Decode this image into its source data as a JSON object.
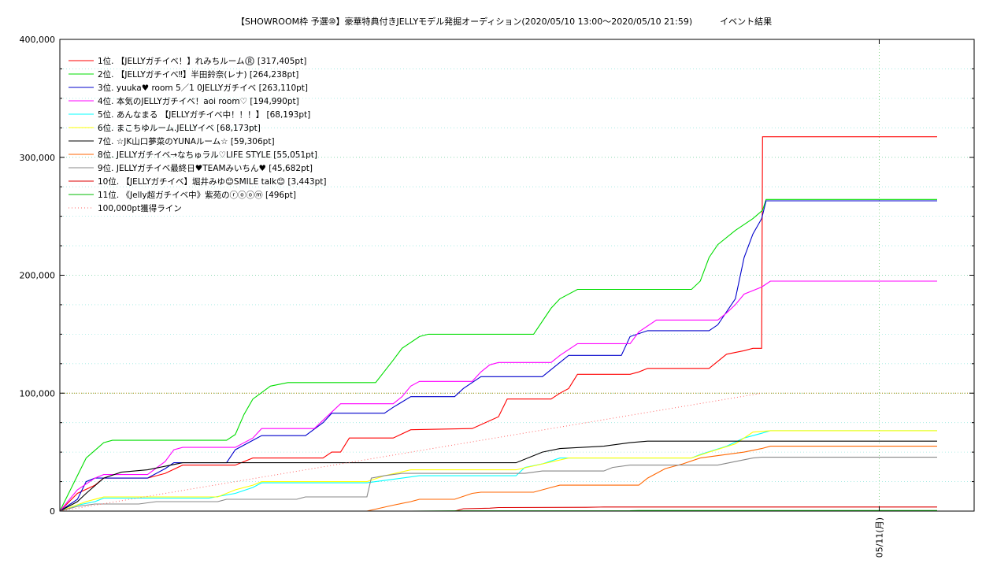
{
  "chart_data": {
    "type": "line",
    "title": "【SHOWROOM枠 予選⑩】豪華特典付きJELLYモデル発掘オーディション(2020/05/10 13:00～2020/05/10 21:59)          イベント結果",
    "xlabel": "",
    "ylabel": "",
    "ylim": [
      0,
      400000
    ],
    "xlim": [
      0,
      1
    ],
    "y_ticks": [
      "0",
      "100,000",
      "200,000",
      "300,000",
      "400,000"
    ],
    "x_ticks": [
      {
        "x": 0.934,
        "label": "05/11(月)"
      }
    ],
    "grid": true,
    "legend_position": "top-left",
    "series": [
      {
        "name": "1位. 【JELLYガチイベ！】れみちルーム®️ [317,405pt]",
        "color": "#ff0000",
        "points": [
          [
            0,
            0
          ],
          [
            0.02,
            15000
          ],
          [
            0.04,
            22000
          ],
          [
            0.05,
            28000
          ],
          [
            0.1,
            28000
          ],
          [
            0.12,
            32000
          ],
          [
            0.14,
            39000
          ],
          [
            0.2,
            39000
          ],
          [
            0.22,
            45000
          ],
          [
            0.3,
            45000
          ],
          [
            0.31,
            50000
          ],
          [
            0.32,
            50000
          ],
          [
            0.33,
            62000
          ],
          [
            0.38,
            62000
          ],
          [
            0.4,
            69000
          ],
          [
            0.47,
            70000
          ],
          [
            0.5,
            80000
          ],
          [
            0.51,
            95000
          ],
          [
            0.56,
            95000
          ],
          [
            0.57,
            100000
          ],
          [
            0.58,
            104000
          ],
          [
            0.59,
            116000
          ],
          [
            0.65,
            116000
          ],
          [
            0.66,
            118000
          ],
          [
            0.67,
            121000
          ],
          [
            0.74,
            121000
          ],
          [
            0.76,
            133000
          ],
          [
            0.78,
            136000
          ],
          [
            0.79,
            138000
          ],
          [
            0.8,
            138000
          ],
          [
            0.801,
            317405
          ],
          [
            1.0,
            317405
          ]
        ]
      },
      {
        "name": "2位. 【JELLYガチイベ‼】半田鈴奈(レナ) [264,238pt]",
        "color": "#00dd00",
        "points": [
          [
            0,
            0
          ],
          [
            0.03,
            45000
          ],
          [
            0.05,
            58000
          ],
          [
            0.06,
            60000
          ],
          [
            0.19,
            60000
          ],
          [
            0.2,
            65000
          ],
          [
            0.21,
            82000
          ],
          [
            0.22,
            95000
          ],
          [
            0.24,
            106000
          ],
          [
            0.26,
            109000
          ],
          [
            0.36,
            109000
          ],
          [
            0.38,
            128000
          ],
          [
            0.39,
            138000
          ],
          [
            0.41,
            148000
          ],
          [
            0.42,
            150000
          ],
          [
            0.54,
            150000
          ],
          [
            0.56,
            172000
          ],
          [
            0.57,
            180000
          ],
          [
            0.59,
            188000
          ],
          [
            0.72,
            188000
          ],
          [
            0.73,
            195000
          ],
          [
            0.74,
            215000
          ],
          [
            0.75,
            226000
          ],
          [
            0.77,
            238000
          ],
          [
            0.79,
            248000
          ],
          [
            0.801,
            255000
          ],
          [
            0.805,
            264238
          ],
          [
            1.0,
            264238
          ]
        ]
      },
      {
        "name": "3位. yuuka♥ room 5／1 0JELLYガチイベ [263,110pt]",
        "color": "#0000cc",
        "points": [
          [
            0,
            0
          ],
          [
            0.02,
            10000
          ],
          [
            0.03,
            25000
          ],
          [
            0.04,
            28000
          ],
          [
            0.1,
            28000
          ],
          [
            0.12,
            36000
          ],
          [
            0.13,
            41000
          ],
          [
            0.19,
            41000
          ],
          [
            0.2,
            52000
          ],
          [
            0.22,
            60000
          ],
          [
            0.23,
            64000
          ],
          [
            0.28,
            64000
          ],
          [
            0.3,
            75000
          ],
          [
            0.31,
            83000
          ],
          [
            0.37,
            83000
          ],
          [
            0.38,
            88000
          ],
          [
            0.4,
            97000
          ],
          [
            0.45,
            97000
          ],
          [
            0.46,
            104000
          ],
          [
            0.48,
            114000
          ],
          [
            0.55,
            114000
          ],
          [
            0.56,
            120000
          ],
          [
            0.58,
            132000
          ],
          [
            0.64,
            132000
          ],
          [
            0.65,
            148000
          ],
          [
            0.67,
            153000
          ],
          [
            0.74,
            153000
          ],
          [
            0.75,
            158000
          ],
          [
            0.77,
            180000
          ],
          [
            0.78,
            215000
          ],
          [
            0.79,
            235000
          ],
          [
            0.8,
            248000
          ],
          [
            0.805,
            263110
          ],
          [
            1.0,
            263110
          ]
        ]
      },
      {
        "name": "4位. 本気のJELLYガチイベ！aoi room♡ [194,990pt]",
        "color": "#ff00ff",
        "points": [
          [
            0,
            0
          ],
          [
            0.02,
            18000
          ],
          [
            0.04,
            28000
          ],
          [
            0.05,
            31000
          ],
          [
            0.1,
            31000
          ],
          [
            0.12,
            42000
          ],
          [
            0.13,
            52000
          ],
          [
            0.14,
            54000
          ],
          [
            0.2,
            54000
          ],
          [
            0.22,
            62000
          ],
          [
            0.23,
            70000
          ],
          [
            0.29,
            70000
          ],
          [
            0.31,
            84000
          ],
          [
            0.32,
            91000
          ],
          [
            0.38,
            91000
          ],
          [
            0.39,
            97000
          ],
          [
            0.4,
            106000
          ],
          [
            0.41,
            110000
          ],
          [
            0.47,
            110000
          ],
          [
            0.48,
            118000
          ],
          [
            0.49,
            124000
          ],
          [
            0.5,
            126000
          ],
          [
            0.56,
            126000
          ],
          [
            0.57,
            132000
          ],
          [
            0.59,
            142000
          ],
          [
            0.65,
            142000
          ],
          [
            0.66,
            152000
          ],
          [
            0.68,
            162000
          ],
          [
            0.75,
            162000
          ],
          [
            0.76,
            168000
          ],
          [
            0.77,
            175000
          ],
          [
            0.78,
            184000
          ],
          [
            0.8,
            190000
          ],
          [
            0.81,
            194990
          ],
          [
            1.0,
            194990
          ]
        ]
      },
      {
        "name": "5位. あんなまる 【JELLYガチイベ中！！！】 [68,193pt]",
        "color": "#00ffff",
        "points": [
          [
            0,
            0
          ],
          [
            0.02,
            5000
          ],
          [
            0.04,
            8000
          ],
          [
            0.05,
            11000
          ],
          [
            0.17,
            11000
          ],
          [
            0.2,
            15000
          ],
          [
            0.22,
            20000
          ],
          [
            0.23,
            24000
          ],
          [
            0.35,
            24000
          ],
          [
            0.37,
            26000
          ],
          [
            0.41,
            30000
          ],
          [
            0.52,
            30000
          ],
          [
            0.53,
            37000
          ],
          [
            0.55,
            40000
          ],
          [
            0.57,
            45000
          ],
          [
            0.72,
            45000
          ],
          [
            0.73,
            48000
          ],
          [
            0.76,
            55000
          ],
          [
            0.78,
            62000
          ],
          [
            0.8,
            66000
          ],
          [
            0.81,
            68193
          ],
          [
            1.0,
            68193
          ]
        ]
      },
      {
        "name": "6位. まこちゆルーム.JELLYイベ [68,173pt]",
        "color": "#ffff00",
        "points": [
          [
            0,
            0
          ],
          [
            0.03,
            8000
          ],
          [
            0.05,
            12000
          ],
          [
            0.18,
            12000
          ],
          [
            0.2,
            18000
          ],
          [
            0.22,
            22000
          ],
          [
            0.23,
            25000
          ],
          [
            0.35,
            25000
          ],
          [
            0.37,
            30000
          ],
          [
            0.4,
            35000
          ],
          [
            0.52,
            35000
          ],
          [
            0.55,
            40000
          ],
          [
            0.58,
            45000
          ],
          [
            0.72,
            45000
          ],
          [
            0.74,
            50000
          ],
          [
            0.77,
            57000
          ],
          [
            0.78,
            62000
          ],
          [
            0.79,
            67000
          ],
          [
            0.81,
            68173
          ],
          [
            1.0,
            68173
          ]
        ]
      },
      {
        "name": "7位. ☆JK山口夢菜のYUNAルーム☆ [59,306pt]",
        "color": "#000000",
        "points": [
          [
            0,
            0
          ],
          [
            0.02,
            8000
          ],
          [
            0.03,
            15000
          ],
          [
            0.05,
            28000
          ],
          [
            0.07,
            33000
          ],
          [
            0.1,
            35000
          ],
          [
            0.12,
            38000
          ],
          [
            0.14,
            41000
          ],
          [
            0.52,
            41000
          ],
          [
            0.54,
            47000
          ],
          [
            0.55,
            50000
          ],
          [
            0.57,
            53000
          ],
          [
            0.62,
            55000
          ],
          [
            0.65,
            58000
          ],
          [
            0.67,
            59306
          ],
          [
            1.0,
            59306
          ]
        ]
      },
      {
        "name": "8位. JELLYガチイベ→なちゅラル♡LIFE STYLE [55,051pt]",
        "color": "#ff6600",
        "points": [
          [
            0,
            0
          ],
          [
            0.35,
            0
          ],
          [
            0.38,
            5000
          ],
          [
            0.4,
            8000
          ],
          [
            0.41,
            10000
          ],
          [
            0.45,
            10000
          ],
          [
            0.47,
            15000
          ],
          [
            0.48,
            16000
          ],
          [
            0.54,
            16000
          ],
          [
            0.56,
            20000
          ],
          [
            0.57,
            22000
          ],
          [
            0.66,
            22000
          ],
          [
            0.67,
            28000
          ],
          [
            0.69,
            36000
          ],
          [
            0.71,
            40000
          ],
          [
            0.73,
            45000
          ],
          [
            0.75,
            47000
          ],
          [
            0.78,
            50000
          ],
          [
            0.8,
            53000
          ],
          [
            0.81,
            55051
          ],
          [
            1.0,
            55051
          ]
        ]
      },
      {
        "name": "9位. JELLYガチイベ最終日♥TEAMみいちん♥ [45,682pt]",
        "color": "#888888",
        "points": [
          [
            0,
            0
          ],
          [
            0.02,
            4000
          ],
          [
            0.04,
            6000
          ],
          [
            0.09,
            6000
          ],
          [
            0.11,
            8000
          ],
          [
            0.18,
            8000
          ],
          [
            0.19,
            10000
          ],
          [
            0.27,
            10000
          ],
          [
            0.28,
            12000
          ],
          [
            0.35,
            12000
          ],
          [
            0.355,
            28000
          ],
          [
            0.37,
            30000
          ],
          [
            0.39,
            32000
          ],
          [
            0.53,
            32000
          ],
          [
            0.55,
            34000
          ],
          [
            0.62,
            34000
          ],
          [
            0.63,
            37000
          ],
          [
            0.65,
            39000
          ],
          [
            0.75,
            39000
          ],
          [
            0.77,
            42000
          ],
          [
            0.79,
            45000
          ],
          [
            0.8,
            45682
          ],
          [
            1.0,
            45682
          ]
        ]
      },
      {
        "name": "10位. 【JELLYガチイベ】堀井みゆ😊SMILE talk😊 [3,443pt]",
        "color": "#dd0000",
        "points": [
          [
            0,
            0
          ],
          [
            0.45,
            0
          ],
          [
            0.46,
            2000
          ],
          [
            0.49,
            2500
          ],
          [
            0.5,
            3000
          ],
          [
            0.6,
            3200
          ],
          [
            0.62,
            3443
          ],
          [
            1.0,
            3443
          ]
        ]
      },
      {
        "name": "11位. 《Jelly超ガチイベ中》紫苑のⓡⓞⓞⓜ [496pt]",
        "color": "#00bb00",
        "points": [
          [
            0,
            0
          ],
          [
            0.4,
            0
          ],
          [
            0.45,
            200
          ],
          [
            0.65,
            300
          ],
          [
            0.66,
            496
          ],
          [
            1.0,
            496
          ]
        ]
      },
      {
        "name": "100,000pt獲得ライン",
        "color": "#ff6666",
        "dotted": true,
        "points": [
          [
            0,
            0
          ],
          [
            0.8,
            100000
          ]
        ]
      }
    ]
  }
}
